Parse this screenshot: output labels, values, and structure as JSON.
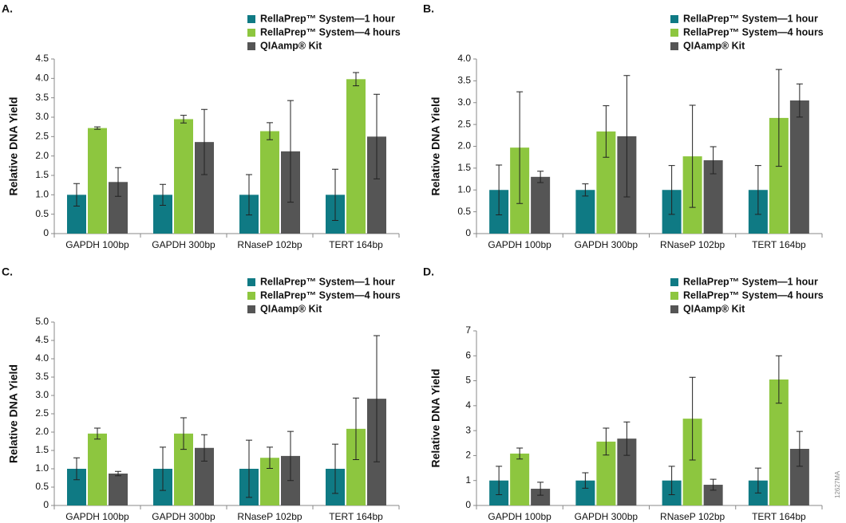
{
  "figure_id": "12627MA",
  "chart_data": [
    {
      "type": "bar",
      "label": "A.",
      "ylabel": "Relative DNA Yield",
      "legend": "top-right",
      "categories": [
        "GAPDH 100bp",
        "GAPDH 300bp",
        "RNaseP 102bp",
        "TERT 164bp"
      ],
      "series": [
        {
          "name": "RellaPrep™ System—1 hour",
          "color": "#0f7a84",
          "values": [
            1,
            1,
            1,
            1
          ],
          "errors": [
            0.29,
            0.27,
            0.52,
            0.66
          ]
        },
        {
          "name": "RellaPrep™ System—4 hours",
          "color": "#8dc63f",
          "values": [
            2.72,
            2.95,
            2.64,
            3.98
          ],
          "errors": [
            0.03,
            0.1,
            0.22,
            0.17
          ]
        },
        {
          "name": "QIAamp® Kit",
          "color": "#555555",
          "values": [
            1.33,
            2.36,
            2.12,
            2.5
          ],
          "errors": [
            0.37,
            0.84,
            1.31,
            1.09
          ]
        }
      ],
      "ylim": [
        0,
        4.5
      ],
      "yticks": [
        0,
        0.5,
        {
          "value": 1,
          "label": "1.0"
        },
        1.5,
        {
          "value": 2,
          "label": "2.0"
        },
        2.5,
        {
          "value": 3,
          "label": "3.0"
        },
        3.5,
        {
          "value": 4,
          "label": "4.0"
        },
        4.5
      ]
    },
    {
      "type": "bar",
      "label": "B.",
      "ylabel": "Relative DNA Yield",
      "legend": "top-right",
      "categories": [
        "GAPDH 100bp",
        "GAPDH 300bp",
        "RNaseP 102bp",
        "TERT 164bp"
      ],
      "series": [
        {
          "name": "RellaPrep™ System—1 hour",
          "color": "#0f7a84",
          "values": [
            1,
            1,
            1,
            1
          ],
          "errors": [
            0.57,
            0.14,
            0.56,
            0.56
          ]
        },
        {
          "name": "RellaPrep™ System—4 hours",
          "color": "#8dc63f",
          "values": [
            1.97,
            2.34,
            1.77,
            2.65
          ],
          "errors": [
            1.28,
            0.59,
            1.17,
            1.11
          ]
        },
        {
          "name": "QIAamp® Kit",
          "color": "#555555",
          "values": [
            1.3,
            2.23,
            1.68,
            3.05
          ],
          "errors": [
            0.13,
            1.39,
            0.31,
            0.38
          ]
        }
      ],
      "ylim": [
        0,
        4
      ],
      "yticks": [
        0,
        0.5,
        {
          "value": 1,
          "label": "1.0"
        },
        1.5,
        {
          "value": 2,
          "label": "2.0"
        },
        2.5,
        {
          "value": 3,
          "label": "3.0"
        },
        3.5,
        {
          "value": 4,
          "label": "4.0"
        }
      ]
    },
    {
      "type": "bar",
      "label": "C.",
      "ylabel": "Relative DNA Yield",
      "legend": "top-right",
      "categories": [
        "GAPDH 100bp",
        "GAPDH 300bp",
        "RNaseP 102bp",
        "TERT 164bp"
      ],
      "series": [
        {
          "name": "RellaPrep™ System—1 hour",
          "color": "#0f7a84",
          "values": [
            1,
            1,
            1,
            1
          ],
          "errors": [
            0.3,
            0.59,
            0.78,
            0.67
          ]
        },
        {
          "name": "RellaPrep™ System—4 hours",
          "color": "#8dc63f",
          "values": [
            1.96,
            1.96,
            1.3,
            2.09
          ],
          "errors": [
            0.15,
            0.43,
            0.29,
            0.84
          ]
        },
        {
          "name": "QIAamp® Kit",
          "color": "#555555",
          "values": [
            0.87,
            1.57,
            1.35,
            2.91
          ],
          "errors": [
            0.06,
            0.36,
            0.67,
            1.72
          ]
        }
      ],
      "ylim": [
        0,
        5
      ],
      "yticks": [
        0,
        0.5,
        {
          "value": 1,
          "label": "1.0"
        },
        1.5,
        {
          "value": 2,
          "label": "2.0"
        },
        2.5,
        {
          "value": 3,
          "label": "3.0"
        },
        3.5,
        {
          "value": 4,
          "label": "4.0"
        },
        4.5,
        {
          "value": 5,
          "label": "5.0"
        }
      ]
    },
    {
      "type": "bar",
      "label": "D.",
      "ylabel": "Relative DNA Yield",
      "legend": "top-right",
      "categories": [
        "GAPDH 100bp",
        "GAPDH 300bp",
        "RNaseP 102bp",
        "TERT 164bp"
      ],
      "series": [
        {
          "name": "RellaPrep™ System—1 hour",
          "color": "#0f7a84",
          "values": [
            1,
            1,
            1,
            1
          ],
          "errors": [
            0.57,
            0.31,
            0.57,
            0.5
          ]
        },
        {
          "name": "RellaPrep™ System—4 hours",
          "color": "#8dc63f",
          "values": [
            2.08,
            2.56,
            3.48,
            5.05
          ],
          "errors": [
            0.22,
            0.54,
            1.66,
            0.95
          ]
        },
        {
          "name": "QIAamp® Kit",
          "color": "#555555",
          "values": [
            0.67,
            2.68,
            0.83,
            2.27
          ],
          "errors": [
            0.26,
            0.67,
            0.22,
            0.7
          ]
        }
      ],
      "ylim": [
        0,
        7
      ],
      "yticks": [
        0,
        1,
        2,
        3,
        4,
        5,
        6,
        7
      ]
    }
  ]
}
